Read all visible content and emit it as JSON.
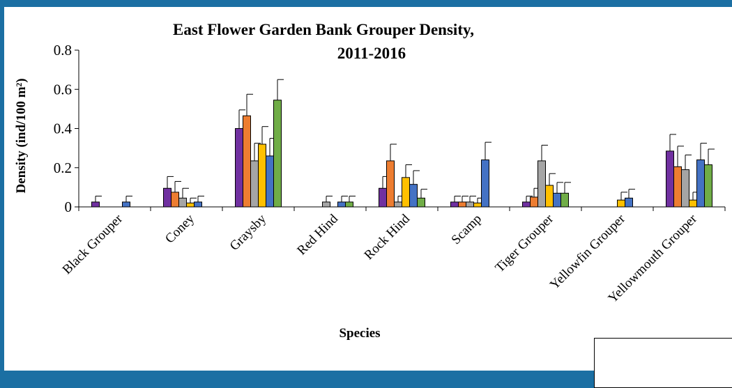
{
  "chart_data": {
    "type": "bar",
    "title": "East Flower Garden Bank Grouper Density, 2011-2016",
    "title_lines": [
      "East Flower Garden Bank Grouper Density,",
      "2011-2016"
    ],
    "xlabel": "Species",
    "ylabel": "Density (ind/100 m²)",
    "ylim": [
      0,
      0.8
    ],
    "yticks": [
      "0",
      "0.2",
      "0.4",
      "0.6",
      "0.8"
    ],
    "ytick_values": [
      0,
      0.2,
      0.4,
      0.6,
      0.8
    ],
    "grid": false,
    "categories": [
      "Black Grouper",
      "Coney",
      "Graysby",
      "Red Hind",
      "Rock Hind",
      "Scamp",
      "Tiger Grouper",
      "Yellowfin Grouper",
      "Yellowmouth Grouper"
    ],
    "series": [
      {
        "color": "#7030a0",
        "values": [
          0.025,
          0.095,
          0.4,
          0.0,
          0.095,
          0.025,
          0.025,
          0.0,
          0.285
        ],
        "errors": [
          0.03,
          0.06,
          0.095,
          0.0,
          0.06,
          0.03,
          0.03,
          0.0,
          0.085
        ]
      },
      {
        "color": "#ed7d31",
        "values": [
          0.0,
          0.075,
          0.465,
          0.0,
          0.235,
          0.025,
          0.05,
          0.0,
          0.205
        ],
        "errors": [
          0.0,
          0.055,
          0.11,
          0.0,
          0.085,
          0.03,
          0.045,
          0.0,
          0.105
        ]
      },
      {
        "color": "#a5a5a5",
        "values": [
          0.0,
          0.045,
          0.235,
          0.025,
          0.025,
          0.025,
          0.235,
          0.0,
          0.19
        ],
        "errors": [
          0.0,
          0.05,
          0.09,
          0.03,
          0.03,
          0.03,
          0.08,
          0.0,
          0.075
        ]
      },
      {
        "color": "#ffc000",
        "values": [
          0.0,
          0.02,
          0.32,
          0.0,
          0.15,
          0.02,
          0.11,
          0.035,
          0.035
        ],
        "errors": [
          0.0,
          0.025,
          0.09,
          0.0,
          0.065,
          0.025,
          0.06,
          0.04,
          0.04
        ]
      },
      {
        "color": "#4472c4",
        "values": [
          0.025,
          0.025,
          0.26,
          0.025,
          0.115,
          0.24,
          0.07,
          0.045,
          0.24
        ],
        "errors": [
          0.03,
          0.03,
          0.09,
          0.03,
          0.07,
          0.09,
          0.055,
          0.045,
          0.085
        ]
      },
      {
        "color": "#70ad47",
        "values": [
          0.0,
          0.0,
          0.545,
          0.025,
          0.045,
          0.0,
          0.07,
          0.0,
          0.215
        ],
        "errors": [
          0.0,
          0.0,
          0.105,
          0.03,
          0.045,
          0.0,
          0.055,
          0.0,
          0.08
        ]
      }
    ]
  }
}
